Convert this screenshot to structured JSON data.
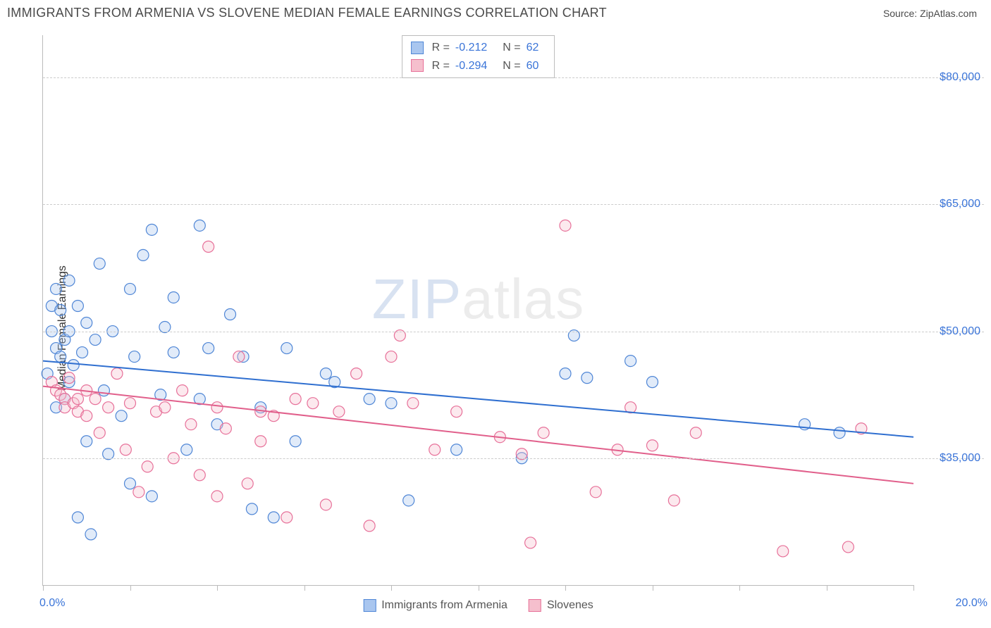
{
  "header": {
    "title": "IMMIGRANTS FROM ARMENIA VS SLOVENE MEDIAN FEMALE EARNINGS CORRELATION CHART",
    "source_prefix": "Source: ",
    "source_name": "ZipAtlas.com"
  },
  "chart": {
    "type": "scatter",
    "ylabel": "Median Female Earnings",
    "xlim": [
      0,
      20
    ],
    "ylim": [
      20000,
      85000
    ],
    "x_tick_positions": [
      0,
      2,
      4,
      6,
      8,
      10,
      12,
      14,
      16,
      18,
      20
    ],
    "x_start_label": "0.0%",
    "x_end_label": "20.0%",
    "y_gridlines": [
      35000,
      50000,
      65000,
      80000
    ],
    "y_tick_labels": [
      "$35,000",
      "$50,000",
      "$65,000",
      "$80,000"
    ],
    "background_color": "#ffffff",
    "grid_color": "#cccccc",
    "axis_color": "#bbbbbb",
    "tick_label_color": "#3a74d8",
    "axis_label_color": "#333333",
    "marker_radius": 8,
    "marker_fill_opacity": 0.35,
    "marker_stroke_width": 1.2,
    "trend_line_width": 2,
    "watermark": {
      "zip": "ZIP",
      "atlas": "atlas",
      "zip_color": "rgba(100,140,200,0.25)",
      "atlas_color": "rgba(150,150,150,0.18)",
      "fontsize": 80
    },
    "stat_legend": {
      "r_label": "R =",
      "n_label": "N =",
      "rows": [
        {
          "swatch_fill": "#a9c6ef",
          "swatch_stroke": "#4f86d6",
          "r": "-0.212",
          "n": "62"
        },
        {
          "swatch_fill": "#f5bfcd",
          "swatch_stroke": "#e77099",
          "r": "-0.294",
          "n": "60"
        }
      ]
    },
    "bottom_legend": {
      "items": [
        {
          "swatch_fill": "#a9c6ef",
          "swatch_stroke": "#4f86d6",
          "label": "Immigrants from Armenia"
        },
        {
          "swatch_fill": "#f5bfcd",
          "swatch_stroke": "#e77099",
          "label": "Slovenes"
        }
      ]
    },
    "series": [
      {
        "name": "Immigrants from Armenia",
        "color_fill": "#a9c6ef",
        "color_stroke": "#4f86d6",
        "trend": {
          "x1": 0,
          "y1": 46500,
          "x2": 20,
          "y2": 37500,
          "color": "#2f6fd0"
        },
        "points": [
          [
            0.1,
            45000
          ],
          [
            0.2,
            50000
          ],
          [
            0.2,
            53000
          ],
          [
            0.3,
            55000
          ],
          [
            0.3,
            41000
          ],
          [
            0.3,
            48000
          ],
          [
            0.4,
            52500
          ],
          [
            0.4,
            47000
          ],
          [
            0.5,
            49000
          ],
          [
            0.5,
            42000
          ],
          [
            0.6,
            50000
          ],
          [
            0.6,
            56000
          ],
          [
            0.6,
            44000
          ],
          [
            0.7,
            46000
          ],
          [
            0.8,
            53000
          ],
          [
            0.8,
            28000
          ],
          [
            0.9,
            47500
          ],
          [
            1.0,
            51000
          ],
          [
            1.0,
            37000
          ],
          [
            1.1,
            26000
          ],
          [
            1.2,
            49000
          ],
          [
            1.3,
            58000
          ],
          [
            1.4,
            43000
          ],
          [
            1.5,
            35500
          ],
          [
            1.6,
            50000
          ],
          [
            1.8,
            40000
          ],
          [
            2.0,
            55000
          ],
          [
            2.0,
            32000
          ],
          [
            2.1,
            47000
          ],
          [
            2.3,
            59000
          ],
          [
            2.5,
            62000
          ],
          [
            2.5,
            30500
          ],
          [
            2.7,
            42500
          ],
          [
            2.8,
            50500
          ],
          [
            3.0,
            47500
          ],
          [
            3.0,
            54000
          ],
          [
            3.3,
            36000
          ],
          [
            3.6,
            62500
          ],
          [
            3.6,
            42000
          ],
          [
            3.8,
            48000
          ],
          [
            4.0,
            39000
          ],
          [
            4.3,
            52000
          ],
          [
            4.6,
            47000
          ],
          [
            4.8,
            29000
          ],
          [
            5.0,
            41000
          ],
          [
            5.3,
            28000
          ],
          [
            5.6,
            48000
          ],
          [
            5.8,
            37000
          ],
          [
            6.5,
            45000
          ],
          [
            6.7,
            44000
          ],
          [
            7.5,
            42000
          ],
          [
            8.0,
            41500
          ],
          [
            8.4,
            30000
          ],
          [
            9.5,
            36000
          ],
          [
            11.0,
            35000
          ],
          [
            12.0,
            45000
          ],
          [
            12.2,
            49500
          ],
          [
            12.5,
            44500
          ],
          [
            13.5,
            46500
          ],
          [
            14.0,
            44000
          ],
          [
            17.5,
            39000
          ],
          [
            18.3,
            38000
          ]
        ]
      },
      {
        "name": "Slovenes",
        "color_fill": "#f5bfcd",
        "color_stroke": "#e77099",
        "trend": {
          "x1": 0,
          "y1": 43500,
          "x2": 20,
          "y2": 32000,
          "color": "#e15f8b"
        },
        "points": [
          [
            0.2,
            44000
          ],
          [
            0.3,
            43000
          ],
          [
            0.4,
            42500
          ],
          [
            0.5,
            42000
          ],
          [
            0.5,
            41000
          ],
          [
            0.6,
            44500
          ],
          [
            0.7,
            41500
          ],
          [
            0.8,
            42000
          ],
          [
            0.8,
            40500
          ],
          [
            1.0,
            43000
          ],
          [
            1.0,
            40000
          ],
          [
            1.2,
            42000
          ],
          [
            1.3,
            38000
          ],
          [
            1.5,
            41000
          ],
          [
            1.7,
            45000
          ],
          [
            1.9,
            36000
          ],
          [
            2.0,
            41500
          ],
          [
            2.2,
            31000
          ],
          [
            2.4,
            34000
          ],
          [
            2.6,
            40500
          ],
          [
            2.8,
            41000
          ],
          [
            3.0,
            35000
          ],
          [
            3.2,
            43000
          ],
          [
            3.4,
            39000
          ],
          [
            3.6,
            33000
          ],
          [
            3.8,
            60000
          ],
          [
            4.0,
            41000
          ],
          [
            4.0,
            30500
          ],
          [
            4.2,
            38500
          ],
          [
            4.5,
            47000
          ],
          [
            4.7,
            32000
          ],
          [
            5.0,
            40500
          ],
          [
            5.0,
            37000
          ],
          [
            5.3,
            40000
          ],
          [
            5.6,
            28000
          ],
          [
            5.8,
            42000
          ],
          [
            6.2,
            41500
          ],
          [
            6.5,
            29500
          ],
          [
            6.8,
            40500
          ],
          [
            7.2,
            45000
          ],
          [
            7.5,
            27000
          ],
          [
            8.0,
            47000
          ],
          [
            8.2,
            49500
          ],
          [
            8.5,
            41500
          ],
          [
            9.0,
            36000
          ],
          [
            9.5,
            40500
          ],
          [
            10.5,
            37500
          ],
          [
            11.0,
            35500
          ],
          [
            11.2,
            25000
          ],
          [
            11.5,
            38000
          ],
          [
            12.0,
            62500
          ],
          [
            12.7,
            31000
          ],
          [
            13.2,
            36000
          ],
          [
            13.5,
            41000
          ],
          [
            14.0,
            36500
          ],
          [
            14.5,
            30000
          ],
          [
            15.0,
            38000
          ],
          [
            17.0,
            24000
          ],
          [
            18.5,
            24500
          ],
          [
            18.8,
            38500
          ]
        ]
      }
    ]
  }
}
